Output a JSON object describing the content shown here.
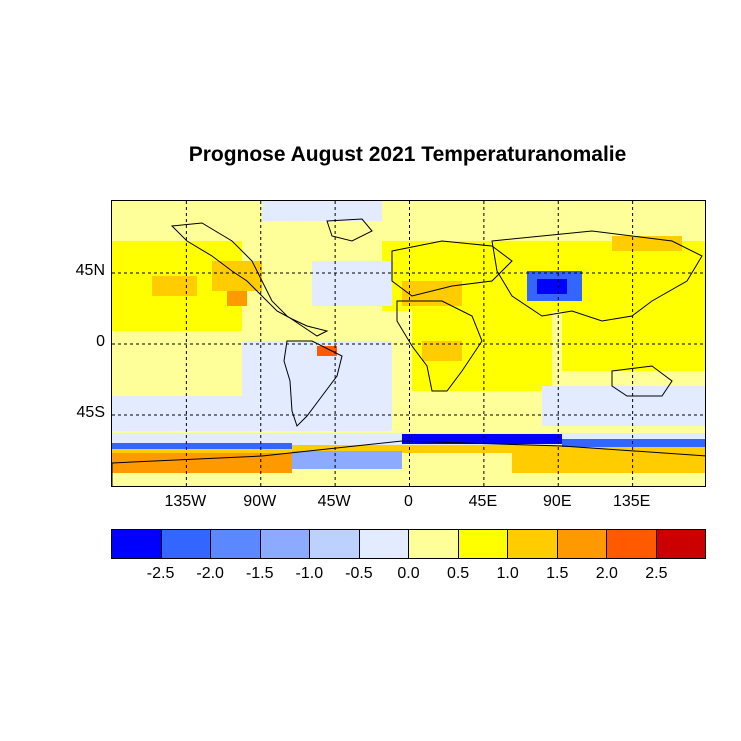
{
  "title": "Prognose August 2021 Temperaturanomalie",
  "map": {
    "lat_labels": [
      "45N",
      "0",
      "45S"
    ],
    "lon_labels": [
      "135W",
      "90W",
      "45W",
      "0",
      "45E",
      "90E",
      "135E"
    ],
    "lat_values": [
      45,
      0,
      -45
    ],
    "lon_values": [
      -135,
      -90,
      -45,
      0,
      45,
      90,
      135
    ]
  },
  "colorbar": {
    "colors": [
      "#0000ff",
      "#3366ff",
      "#5b87ff",
      "#8caaff",
      "#bdd1ff",
      "#e2ebff",
      "#ffff99",
      "#ffff00",
      "#ffcc00",
      "#ff9900",
      "#ff5a00",
      "#cc0000"
    ],
    "labels": [
      "-2.5",
      "-2.0",
      "-1.5",
      "-1.0",
      "-0.5",
      "0.0",
      "0.5",
      "1.0",
      "1.5",
      "2.0",
      "2.5"
    ]
  }
}
